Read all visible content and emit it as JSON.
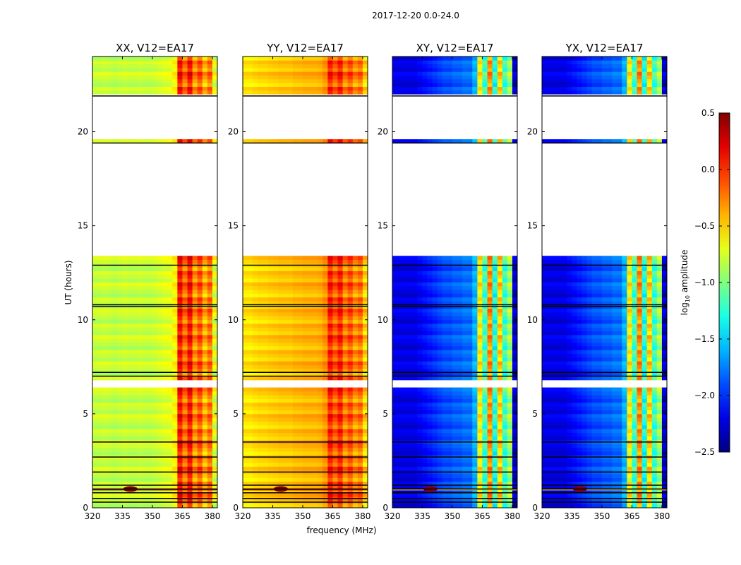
{
  "chart_data": {
    "type": "heatmap",
    "suptitle": "2017-12-20 0.0-24.0",
    "xlabel": "frequency (MHz)",
    "ylabel": "UT (hours)",
    "xlim": [
      320,
      382.5
    ],
    "ylim": [
      0,
      24
    ],
    "xticks": [
      "320",
      "335",
      "350",
      "365",
      "380"
    ],
    "xtick_values": [
      320,
      335,
      350,
      365,
      380
    ],
    "yticks": [
      "0",
      "5",
      "10",
      "15",
      "20"
    ],
    "ytick_values": [
      0,
      5,
      10,
      15,
      20
    ],
    "freq_bin_mhz": 2.5,
    "time_bin_hours": 0.2,
    "flagged_time_ranges_white": [
      [
        6.4,
        6.8
      ],
      [
        13.4,
        19.4
      ],
      [
        19.6,
        21.9
      ]
    ],
    "flagged_time_lines_black": [
      0.3,
      0.5,
      0.8,
      1.0,
      1.2,
      1.9,
      2.7,
      3.5,
      7.0,
      7.2,
      10.7,
      10.8,
      12.9,
      19.4,
      21.9
    ],
    "panels": [
      {
        "title": "XX, V12=EA17",
        "freq_profile": [
          -0.8,
          -0.8,
          -0.78,
          -0.8,
          -0.82,
          -0.8,
          -0.78,
          -0.8,
          -0.8,
          -0.78,
          -0.8,
          -0.8,
          -0.78,
          -0.75,
          -0.72,
          -0.7,
          -0.6,
          0.1,
          -0.2,
          0.1,
          -0.3,
          -0.1,
          -0.4,
          -0.2,
          -0.7
        ]
      },
      {
        "title": "YY, V12=EA17",
        "freq_profile": [
          -0.55,
          -0.55,
          -0.52,
          -0.5,
          -0.5,
          -0.48,
          -0.47,
          -0.45,
          -0.45,
          -0.45,
          -0.42,
          -0.42,
          -0.4,
          -0.4,
          -0.4,
          -0.38,
          -0.3,
          0.05,
          -0.15,
          0.05,
          -0.25,
          -0.1,
          -0.3,
          -0.2,
          -0.5
        ]
      },
      {
        "title": "XY, V12=EA17",
        "freq_profile": [
          -2.2,
          -2.2,
          -2.2,
          -2.2,
          -2.2,
          -2.15,
          -2.1,
          -2.05,
          -2.0,
          -1.95,
          -1.9,
          -1.9,
          -1.85,
          -1.85,
          -1.8,
          -1.8,
          -1.6,
          -0.6,
          -1.2,
          -0.3,
          -1.3,
          -0.5,
          -1.2,
          -0.9,
          -2.3
        ]
      },
      {
        "title": "YX, V12=EA17",
        "freq_profile": [
          -2.2,
          -2.2,
          -2.2,
          -2.2,
          -2.2,
          -2.15,
          -2.1,
          -2.05,
          -2.0,
          -1.95,
          -1.9,
          -1.9,
          -1.85,
          -1.85,
          -1.8,
          -1.8,
          -1.6,
          -0.6,
          -1.2,
          -0.3,
          -1.3,
          -0.5,
          -1.2,
          -0.9,
          -2.3
        ]
      }
    ],
    "colorbar": {
      "label": "log10 amplitude",
      "label_main": "log",
      "label_sub": "10",
      "label_rest": " amplitude",
      "colormap": "jet",
      "range": [
        -2.5,
        0.5
      ],
      "ticks": [
        "0.5",
        "0.0",
        "−0.5",
        "−1.0",
        "−1.5",
        "−2.0",
        "−2.5"
      ],
      "tick_values": [
        0.5,
        0.0,
        -0.5,
        -1.0,
        -1.5,
        -2.0,
        -2.5
      ]
    }
  }
}
